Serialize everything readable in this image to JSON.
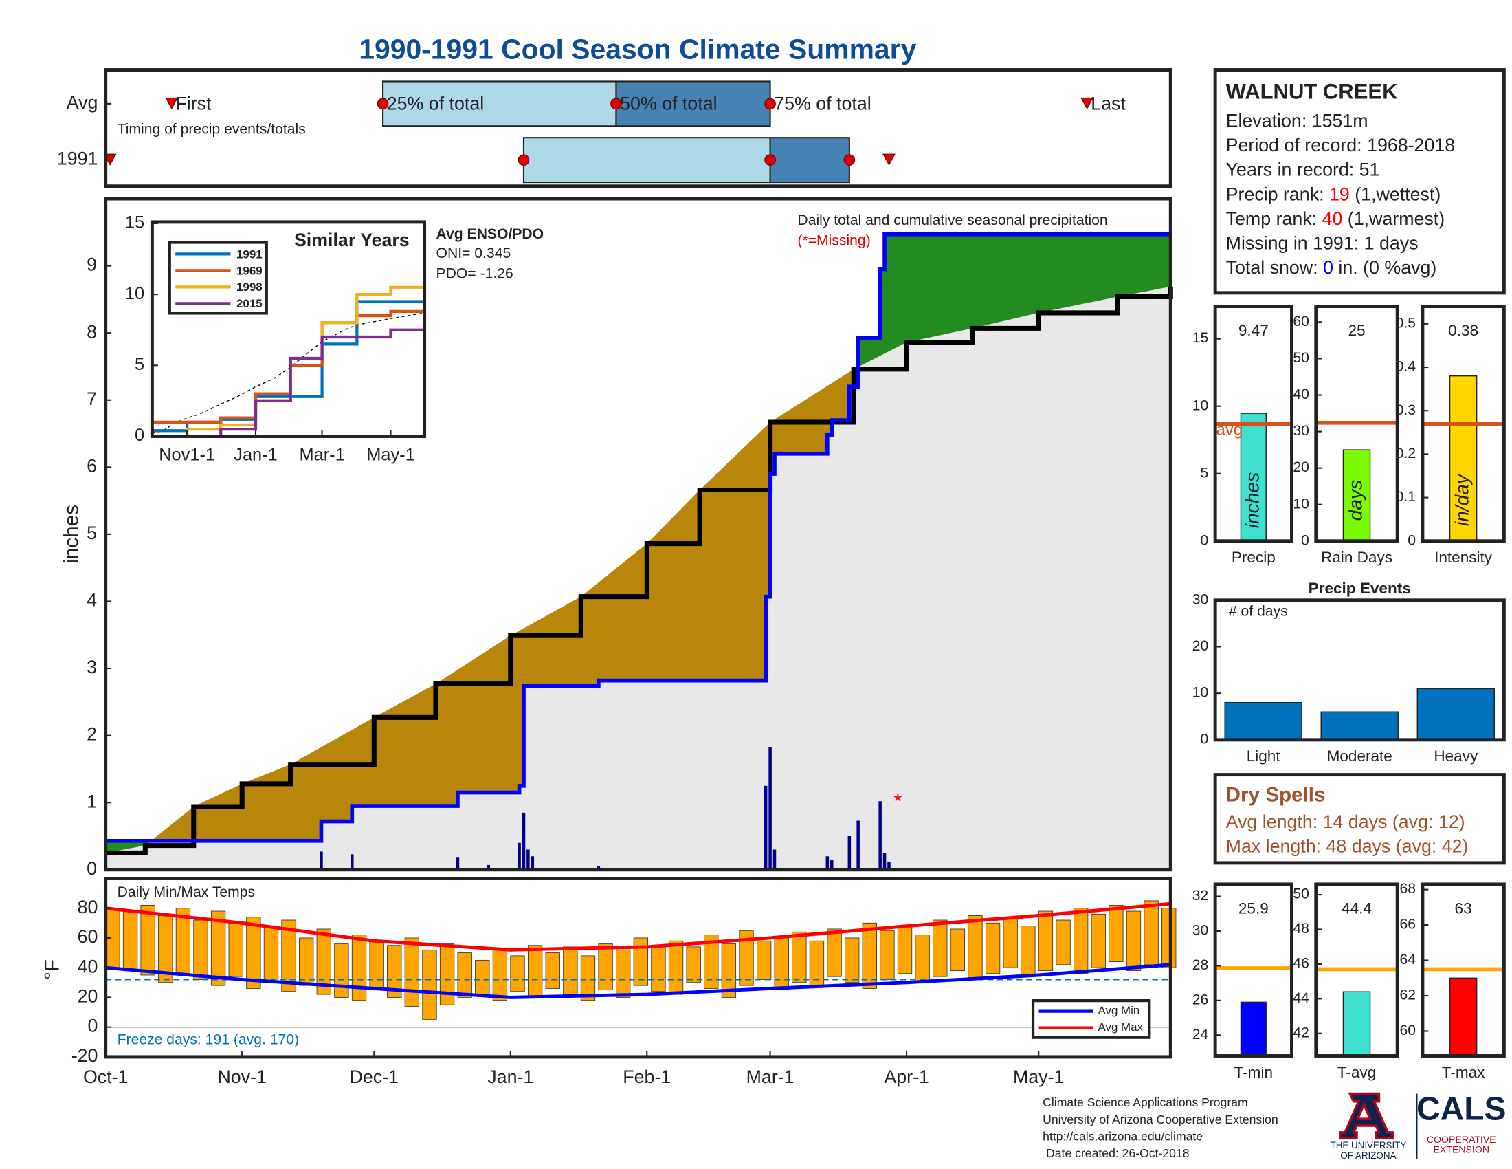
{
  "title": "1990-1991 Cool Season Climate Summary",
  "chart_data": [
    {
      "type": "timing",
      "xlim": [
        0,
        242
      ],
      "annotation": "Timing of precip events/totals",
      "marker_labels": [
        "First",
        "25% of total",
        "50% of total",
        "75% of total",
        "Last"
      ],
      "box_colors": [
        "#add8e6",
        "#4682b4"
      ],
      "marker_color": "#e00000",
      "series": [
        {
          "name": "Avg",
          "values": [
            15,
            63,
            116,
            151,
            223
          ]
        },
        {
          "name": "1991",
          "values": [
            1,
            95,
            151,
            169,
            178
          ]
        }
      ]
    },
    {
      "type": "area",
      "title": "Daily total and cumulative seasonal precipitation",
      "note": "(*=Missing)",
      "ylabel": "inches",
      "xlim": [
        0,
        242
      ],
      "ylim": [
        0,
        10
      ],
      "yticks": [
        0,
        1,
        2,
        3,
        4,
        5,
        6,
        7,
        8,
        9
      ],
      "enso_title": "Avg ENSO/PDO",
      "enso_lines": [
        "ONI= 0.345",
        "PDO= -1.26"
      ],
      "above_avg_color": "#228b22",
      "below_avg_color": "#b8860b",
      "base_color": "#e8e8e8",
      "avg_cumulative": {
        "color": "#000000",
        "x": [
          0,
          9,
          20,
          31,
          42,
          61,
          75,
          92,
          108,
          123,
          135,
          151,
          170,
          182,
          197,
          212,
          230,
          242
        ],
        "values": [
          0.25,
          0.36,
          0.94,
          1.28,
          1.57,
          2.27,
          2.77,
          3.49,
          4.07,
          4.86,
          5.66,
          6.67,
          7.46,
          7.86,
          8.07,
          8.3,
          8.54,
          8.69
        ]
      },
      "cumulative": {
        "color": "#0000ff",
        "x": [
          0,
          49,
          56,
          80,
          94,
          95,
          112,
          150,
          151,
          152,
          164,
          165,
          169,
          171,
          176,
          177,
          242
        ],
        "values": [
          0.43,
          0.72,
          0.95,
          1.15,
          1.25,
          2.74,
          2.82,
          4.07,
          5.9,
          6.2,
          6.48,
          6.7,
          7.2,
          7.93,
          8.95,
          9.47,
          9.47
        ]
      },
      "daily": {
        "color": "#00008b",
        "x": [
          49,
          56,
          80,
          87,
          94,
          95,
          96,
          97,
          112,
          150,
          151,
          152,
          164,
          165,
          169,
          171,
          176,
          177,
          178
        ],
        "values": [
          0.27,
          0.23,
          0.18,
          0.07,
          0.4,
          0.85,
          0.3,
          0.2,
          0.05,
          1.25,
          1.83,
          0.3,
          0.2,
          0.15,
          0.5,
          0.73,
          1.02,
          0.25,
          0.12
        ]
      },
      "missing": {
        "x": 180,
        "value": 1.0,
        "label": "*",
        "color": "#ff0000"
      }
    },
    {
      "type": "line",
      "title": "Similar Years",
      "xlim": [
        0,
        242
      ],
      "ylim": [
        0,
        15.1
      ],
      "yticks": [
        0,
        5,
        10,
        15
      ],
      "xticks": [
        {
          "value": 31,
          "label": "Nov1-1"
        },
        {
          "value": 92,
          "label": "Jan-1"
        },
        {
          "value": 151,
          "label": "Mar-1"
        },
        {
          "value": 212,
          "label": "May-1"
        }
      ],
      "x": [
        0,
        31,
        61,
        92,
        123,
        151,
        182,
        212,
        242
      ],
      "series": [
        {
          "name": "1991",
          "color": "#0072bd",
          "values": [
            0.4,
            1.0,
            1.2,
            2.8,
            2.8,
            6.5,
            9.5,
            9.5,
            9.5
          ]
        },
        {
          "name": "1969",
          "color": "#d95319",
          "values": [
            1.0,
            1.0,
            1.3,
            3.0,
            5.0,
            8.0,
            8.5,
            8.8,
            8.8
          ]
        },
        {
          "name": "1998",
          "color": "#edb120",
          "values": [
            0,
            0.5,
            0.8,
            2.5,
            5.5,
            8.0,
            10.0,
            10.5,
            11.0
          ]
        },
        {
          "name": "2015",
          "color": "#7e2f8e",
          "values": [
            0,
            0,
            0.5,
            2.5,
            5.5,
            7.0,
            7.0,
            7.5,
            7.7
          ]
        }
      ]
    },
    {
      "type": "range_bar",
      "title": "Daily Min/Max Temps",
      "ylabel": "°F",
      "xlim": [
        0,
        242
      ],
      "ylim": [
        -20,
        100
      ],
      "yticks": [
        -20,
        0,
        20,
        40,
        60,
        80
      ],
      "xticks": [
        {
          "value": 0,
          "label": "Oct-1"
        },
        {
          "value": 31,
          "label": "Nov-1"
        },
        {
          "value": 61,
          "label": "Dec-1"
        },
        {
          "value": 92,
          "label": "Jan-1"
        },
        {
          "value": 123,
          "label": "Feb-1"
        },
        {
          "value": 151,
          "label": "Mar-1"
        },
        {
          "value": 182,
          "label": "Apr-1"
        },
        {
          "value": 212,
          "label": "May-1"
        }
      ],
      "bar_color": "#ffa500",
      "freeze": 32,
      "freeze_color": "#0072bd",
      "annotation": "Freeze days: 191 (avg. 170)",
      "x": [
        0,
        4,
        8,
        12,
        16,
        20,
        24,
        28,
        32,
        36,
        40,
        44,
        48,
        52,
        56,
        60,
        64,
        68,
        72,
        76,
        80,
        84,
        88,
        92,
        96,
        100,
        104,
        108,
        112,
        116,
        120,
        124,
        128,
        132,
        136,
        140,
        144,
        148,
        152,
        156,
        160,
        164,
        168,
        172,
        176,
        180,
        184,
        188,
        192,
        196,
        200,
        204,
        208,
        212,
        216,
        220,
        224,
        228,
        232,
        236,
        240
      ],
      "daily_max": [
        80,
        78,
        82,
        75,
        80,
        72,
        78,
        70,
        74,
        68,
        72,
        60,
        66,
        56,
        62,
        58,
        55,
        60,
        52,
        56,
        50,
        45,
        52,
        48,
        55,
        50,
        54,
        48,
        56,
        52,
        60,
        55,
        58,
        54,
        62,
        56,
        65,
        58,
        60,
        64,
        58,
        66,
        60,
        70,
        65,
        68,
        62,
        72,
        66,
        75,
        70,
        74,
        68,
        78,
        72,
        80,
        76,
        82,
        78,
        85,
        80
      ],
      "daily_min": [
        40,
        38,
        35,
        30,
        36,
        32,
        28,
        34,
        26,
        30,
        24,
        28,
        22,
        20,
        18,
        25,
        20,
        14,
        5,
        15,
        20,
        22,
        18,
        24,
        20,
        26,
        22,
        18,
        25,
        20,
        28,
        24,
        22,
        30,
        26,
        20,
        28,
        32,
        25,
        30,
        28,
        34,
        30,
        26,
        32,
        36,
        30,
        34,
        38,
        32,
        36,
        40,
        34,
        38,
        42,
        36,
        40,
        44,
        38,
        42,
        40
      ],
      "series": [
        {
          "name": "Avg Min",
          "color": "#0000ff",
          "x": [
            0,
            31,
            61,
            92,
            123,
            151,
            182,
            212,
            242
          ],
          "values": [
            40,
            32,
            26,
            20,
            22,
            26,
            30,
            35,
            42
          ]
        },
        {
          "name": "Avg Max",
          "color": "#ff0000",
          "x": [
            0,
            31,
            61,
            92,
            123,
            151,
            182,
            212,
            242
          ],
          "values": [
            80,
            70,
            58,
            52,
            54,
            60,
            68,
            75,
            83
          ]
        }
      ]
    },
    {
      "type": "summary_bar",
      "label": "Precip",
      "unit_label": "inches",
      "value": 9.47,
      "avg": 8.7,
      "avg_label": "avg",
      "color": "#40e0d0",
      "avg_color": "#d95319",
      "ylim": [
        0,
        17.4
      ],
      "yticks": [
        0,
        5,
        10,
        15
      ]
    },
    {
      "type": "summary_bar",
      "label": "Rain Days",
      "unit_label": "days",
      "value": 25,
      "avg": 32.4,
      "color": "#7cfc00",
      "avg_color": "#d95319",
      "ylim": [
        0,
        64.3
      ],
      "yticks": [
        0,
        10,
        20,
        30,
        40,
        50,
        60
      ]
    },
    {
      "type": "summary_bar",
      "label": "Intensity",
      "unit_label": "in/day",
      "value": 0.38,
      "avg": 0.27,
      "color": "#ffd700",
      "avg_color": "#d95319",
      "ylim": [
        0,
        0.54
      ],
      "yticks": [
        0,
        0.1,
        0.2,
        0.3,
        0.4,
        0.5
      ]
    },
    {
      "type": "bar",
      "title": "Precip Events",
      "ylabel": "# of days",
      "categories": [
        "Light",
        "Moderate",
        "Heavy"
      ],
      "values": [
        8,
        6,
        11
      ],
      "color": "#0072bd",
      "ylim": [
        0,
        30
      ],
      "yticks": [
        0,
        10,
        20,
        30
      ]
    },
    {
      "type": "summary_bar",
      "label": "T-min",
      "value": 25.9,
      "avg": 27.86,
      "color": "#0000ff",
      "avg_color": "#ffa500",
      "ylim": [
        22.8,
        32.7
      ],
      "yticks": [
        24,
        26,
        28,
        30,
        32
      ]
    },
    {
      "type": "summary_bar",
      "label": "T-avg",
      "value": 44.4,
      "avg": 45.7,
      "color": "#40e0d0",
      "avg_color": "#ffa500",
      "ylim": [
        40.7,
        50.6
      ],
      "yticks": [
        42,
        44,
        46,
        48,
        50
      ]
    },
    {
      "type": "summary_bar",
      "label": "T-max",
      "value": 63,
      "avg": 63.5,
      "color": "#ff0000",
      "avg_color": "#ffa500",
      "ylim": [
        58.6,
        68.3
      ],
      "yticks": [
        60,
        62,
        64,
        66,
        68
      ]
    }
  ],
  "station": {
    "name": "WALNUT CREEK",
    "lines": [
      [
        {
          "text": "Elevation: 1551m"
        }
      ],
      [
        {
          "text": "Period of record: 1968-2018"
        }
      ],
      [
        {
          "text": "Years in record: 51"
        }
      ],
      [
        {
          "text": "Precip rank: "
        },
        {
          "text": "19",
          "color": "#ff0000"
        },
        {
          "text": " (1,wettest)"
        }
      ],
      [
        {
          "text": "Temp rank: "
        },
        {
          "text": "40",
          "color": "#ff0000"
        },
        {
          "text": " (1,warmest)"
        }
      ],
      [
        {
          "text": "Missing in 1991: 1 days"
        }
      ],
      [
        {
          "text": "Total snow: "
        },
        {
          "text": "0",
          "color": "#0000ff"
        },
        {
          "text": " in. (0 %avg)"
        }
      ]
    ]
  },
  "dry_spells": {
    "title": "Dry Spells",
    "color": "#a0522d",
    "lines": [
      "Avg length: 14 days (avg: 12)",
      "Max length: 48 days (avg: 42)"
    ]
  },
  "footer": {
    "lines": [
      "Climate Science Applications Program",
      "University of Arizona Cooperative Extension",
      "http://cals.arizona.edu/climate",
      " Date created: 26-Oct-2018"
    ]
  },
  "logo": {
    "university": [
      "THE UNIVERSITY",
      "OF ARIZONA"
    ],
    "cals": "CALS",
    "extension": [
      "COOPERATIVE",
      "EXTENSION"
    ]
  }
}
